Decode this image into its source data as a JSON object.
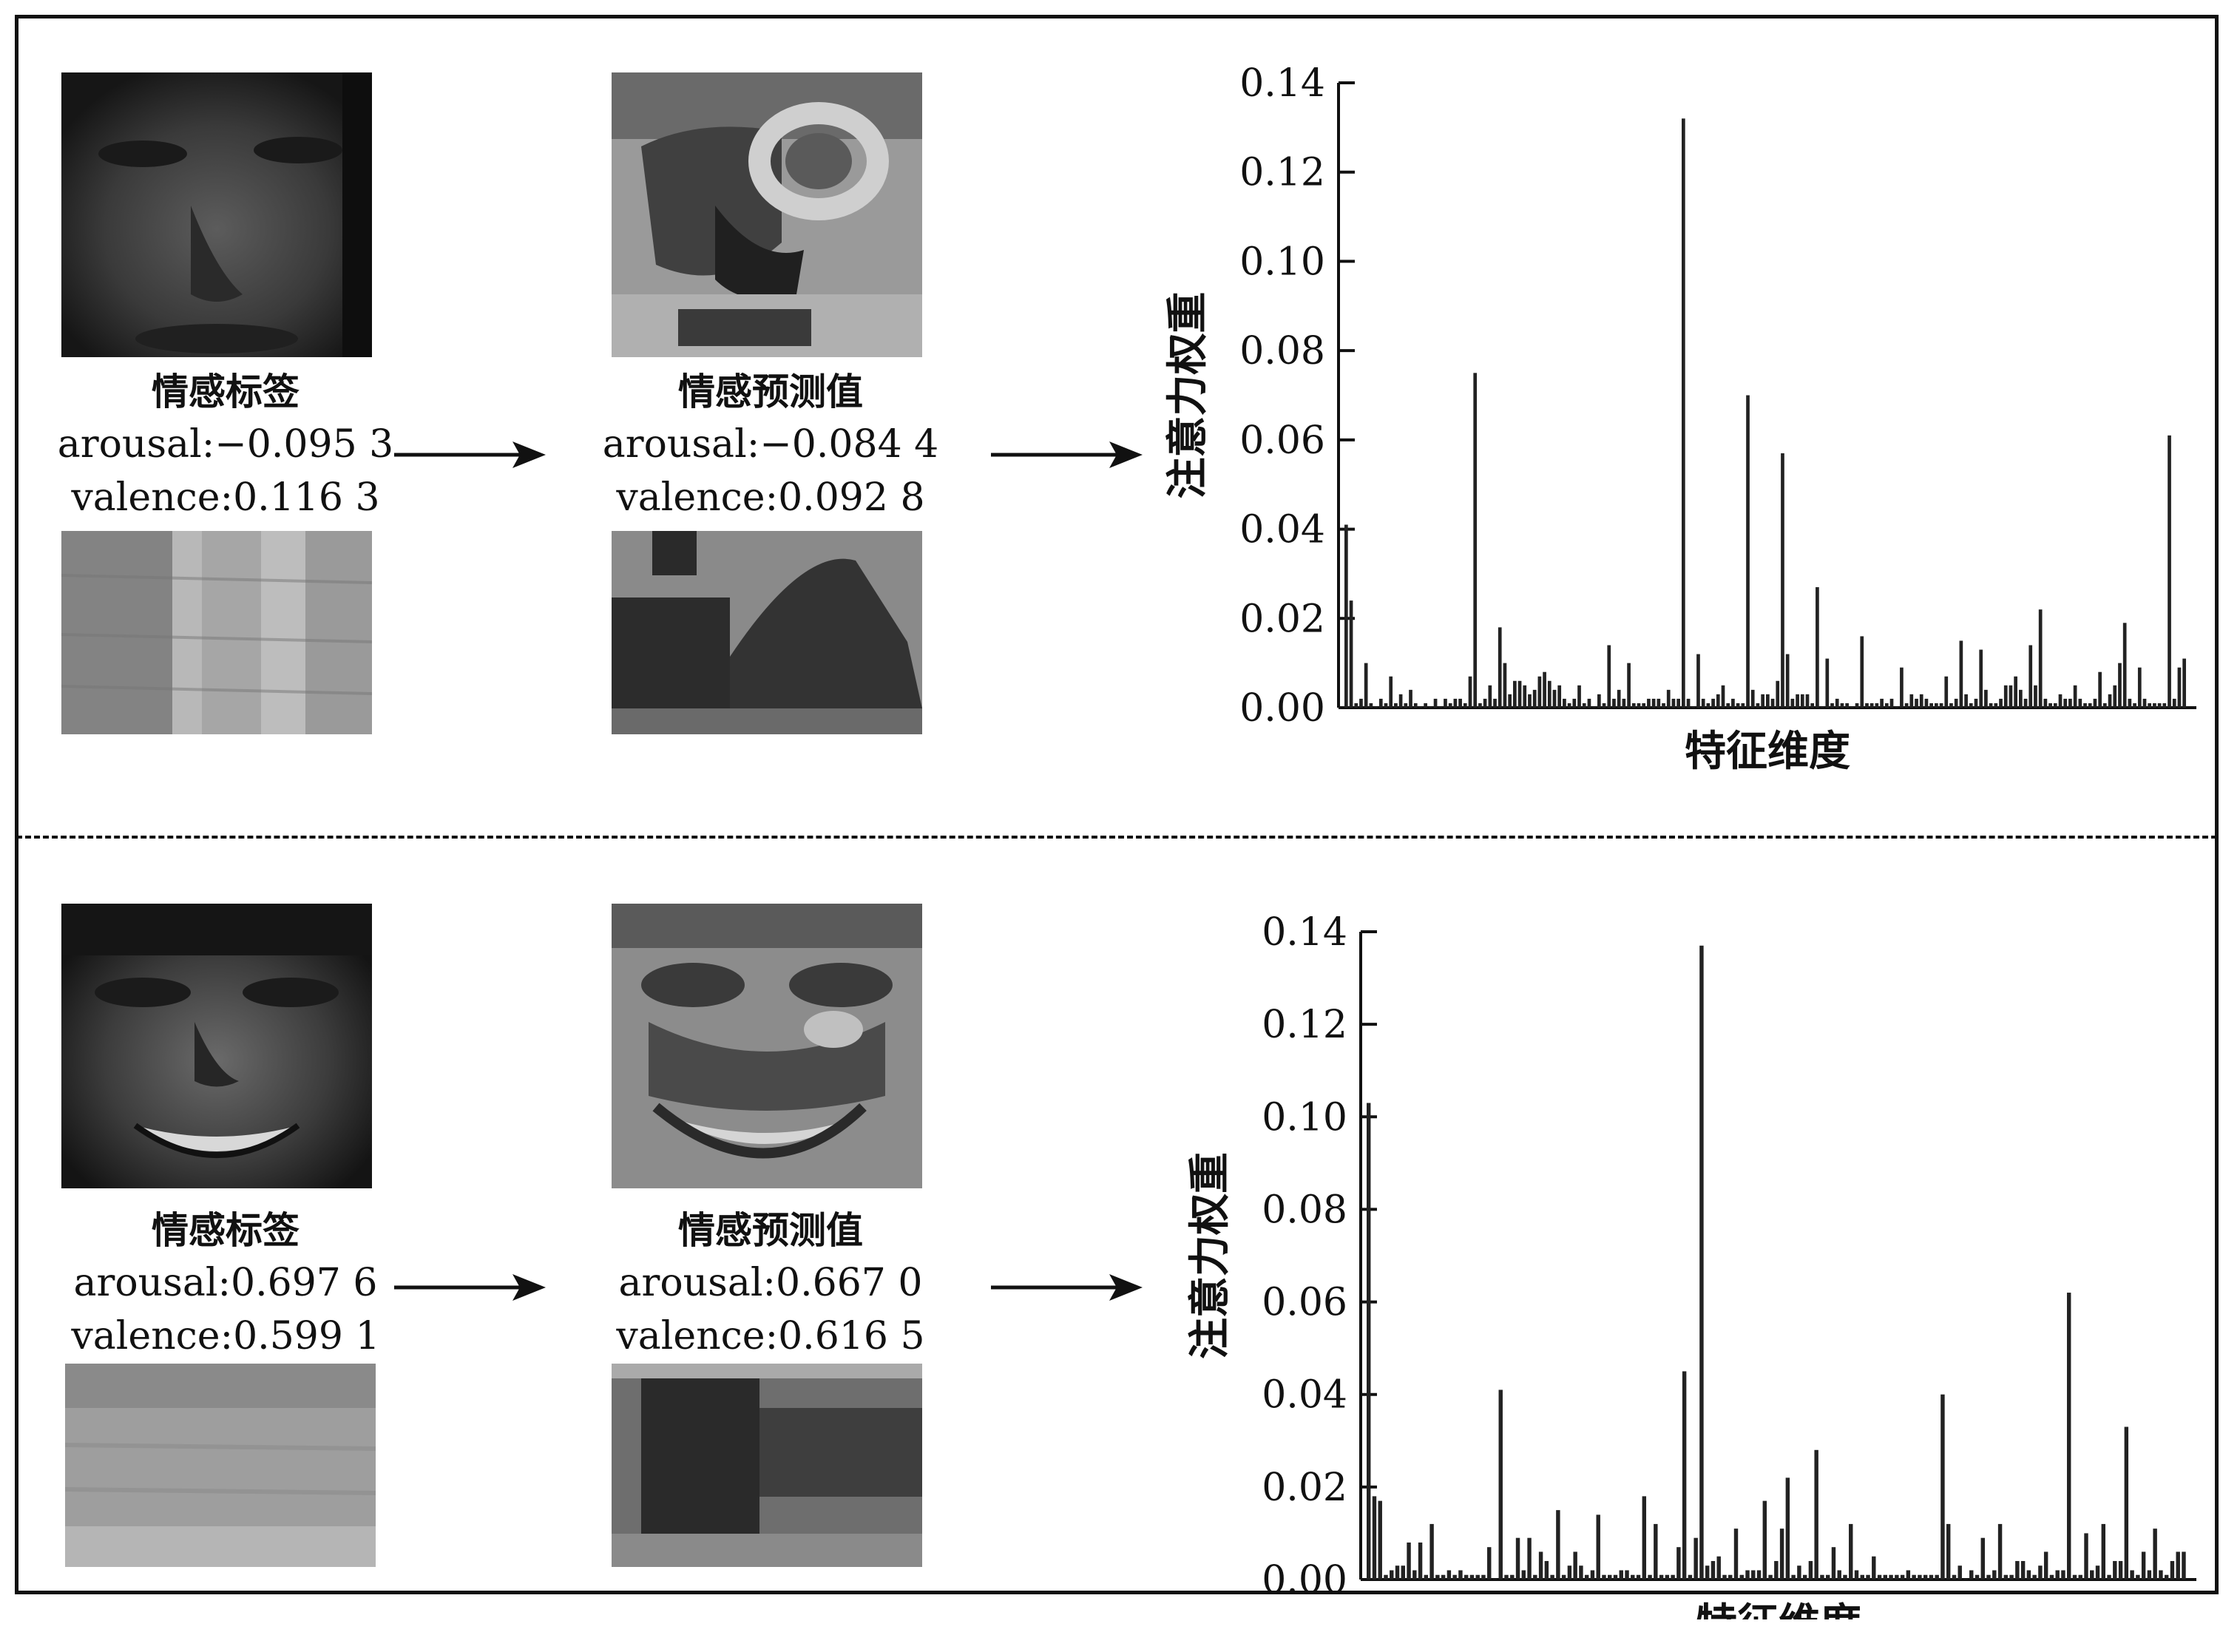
{
  "colors": {
    "line": "#111111",
    "bar": "#222222",
    "background": "#ffffff"
  },
  "panels": [
    {
      "label": {
        "title": "情感标签",
        "arousal": "arousal:−0.095 3",
        "valence": "valence:0.116 3"
      },
      "prediction": {
        "title": "情感预测值",
        "arousal": "arousal:−0.084 4",
        "valence": "valence:0.092 8"
      },
      "face_image": "dark-face-photo",
      "pred_face_image": "attention-face-map-with-glasses",
      "bg_image": "wood-texture-photo",
      "pred_bg_image": "dark-blob-map"
    },
    {
      "label": {
        "title": "情感标签",
        "arousal": "arousal:0.697 6",
        "valence": "valence:0.599 1"
      },
      "prediction": {
        "title": "情感预测值",
        "arousal": "arousal:0.667 0",
        "valence": "valence:0.616 5"
      },
      "face_image": "smiling-face-photo",
      "pred_face_image": "attention-face-map-smiling",
      "bg_image": "speckled-texture-photo",
      "pred_bg_image": "dark-horizontal-band-map"
    }
  ],
  "chart_data": [
    {
      "type": "bar",
      "ylabel": "注意力权重",
      "xlabel": "特征维度",
      "ylim": [
        0,
        0.14
      ],
      "yticks": [
        "0.00",
        "0.02",
        "0.04",
        "0.06",
        "0.08",
        "0.10",
        "0.12",
        "0.14"
      ],
      "values": [
        0.041,
        0.024,
        0.001,
        0.002,
        0.01,
        0.001,
        0.0,
        0.002,
        0.001,
        0.007,
        0.001,
        0.003,
        0.001,
        0.004,
        0.001,
        0.0,
        0.001,
        0.0,
        0.002,
        0.0,
        0.002,
        0.001,
        0.002,
        0.002,
        0.001,
        0.007,
        0.075,
        0.001,
        0.002,
        0.005,
        0.002,
        0.018,
        0.01,
        0.003,
        0.006,
        0.006,
        0.005,
        0.003,
        0.004,
        0.007,
        0.008,
        0.006,
        0.004,
        0.005,
        0.002,
        0.001,
        0.002,
        0.005,
        0.001,
        0.002,
        0.0,
        0.003,
        0.001,
        0.014,
        0.002,
        0.004,
        0.002,
        0.01,
        0.001,
        0.001,
        0.001,
        0.002,
        0.002,
        0.002,
        0.001,
        0.004,
        0.002,
        0.002,
        0.132,
        0.002,
        0.0,
        0.012,
        0.002,
        0.001,
        0.002,
        0.003,
        0.005,
        0.001,
        0.002,
        0.001,
        0.001,
        0.07,
        0.004,
        0.001,
        0.003,
        0.003,
        0.002,
        0.006,
        0.057,
        0.012,
        0.002,
        0.003,
        0.003,
        0.003,
        0.001,
        0.027,
        0.0,
        0.011,
        0.001,
        0.002,
        0.001,
        0.001,
        0.0,
        0.001,
        0.016,
        0.001,
        0.001,
        0.001,
        0.002,
        0.001,
        0.002,
        0.0,
        0.009,
        0.001,
        0.003,
        0.002,
        0.003,
        0.002,
        0.001,
        0.001,
        0.001,
        0.007,
        0.001,
        0.002,
        0.015,
        0.003,
        0.001,
        0.002,
        0.013,
        0.004,
        0.001,
        0.001,
        0.002,
        0.005,
        0.005,
        0.007,
        0.004,
        0.002,
        0.014,
        0.005,
        0.022,
        0.002,
        0.001,
        0.001,
        0.003,
        0.002,
        0.002,
        0.005,
        0.002,
        0.001,
        0.001,
        0.002,
        0.008,
        0.001,
        0.003,
        0.005,
        0.01,
        0.019,
        0.002,
        0.001,
        0.009,
        0.002,
        0.001,
        0.001,
        0.001,
        0.001,
        0.061,
        0.002,
        0.009,
        0.011
      ]
    },
    {
      "type": "bar",
      "ylabel": "注意力权重",
      "xlabel": "特征维度",
      "ylim": [
        0,
        0.14
      ],
      "yticks": [
        "0.00",
        "0.02",
        "0.04",
        "0.06",
        "0.08",
        "0.10",
        "0.12",
        "0.14"
      ],
      "values": [
        0.103,
        0.018,
        0.017,
        0.001,
        0.002,
        0.003,
        0.003,
        0.008,
        0.002,
        0.008,
        0.001,
        0.012,
        0.001,
        0.001,
        0.002,
        0.001,
        0.002,
        0.001,
        0.001,
        0.001,
        0.001,
        0.007,
        0.0,
        0.041,
        0.001,
        0.001,
        0.009,
        0.002,
        0.009,
        0.001,
        0.006,
        0.004,
        0.001,
        0.015,
        0.001,
        0.003,
        0.006,
        0.003,
        0.001,
        0.002,
        0.014,
        0.001,
        0.001,
        0.001,
        0.002,
        0.002,
        0.001,
        0.001,
        0.018,
        0.001,
        0.012,
        0.001,
        0.001,
        0.001,
        0.007,
        0.045,
        0.001,
        0.009,
        0.137,
        0.003,
        0.004,
        0.005,
        0.001,
        0.001,
        0.011,
        0.001,
        0.002,
        0.002,
        0.002,
        0.017,
        0.001,
        0.004,
        0.011,
        0.022,
        0.001,
        0.003,
        0.001,
        0.004,
        0.028,
        0.001,
        0.001,
        0.007,
        0.002,
        0.001,
        0.012,
        0.002,
        0.001,
        0.001,
        0.005,
        0.001,
        0.001,
        0.001,
        0.001,
        0.001,
        0.002,
        0.001,
        0.001,
        0.001,
        0.001,
        0.001,
        0.04,
        0.012,
        0.001,
        0.003,
        0.0,
        0.002,
        0.001,
        0.009,
        0.001,
        0.002,
        0.012,
        0.001,
        0.001,
        0.004,
        0.004,
        0.002,
        0.001,
        0.003,
        0.006,
        0.001,
        0.002,
        0.002,
        0.062,
        0.001,
        0.001,
        0.01,
        0.002,
        0.003,
        0.012,
        0.001,
        0.004,
        0.004,
        0.033,
        0.002,
        0.001,
        0.006,
        0.002,
        0.011,
        0.002,
        0.001,
        0.004,
        0.006,
        0.006
      ]
    }
  ]
}
